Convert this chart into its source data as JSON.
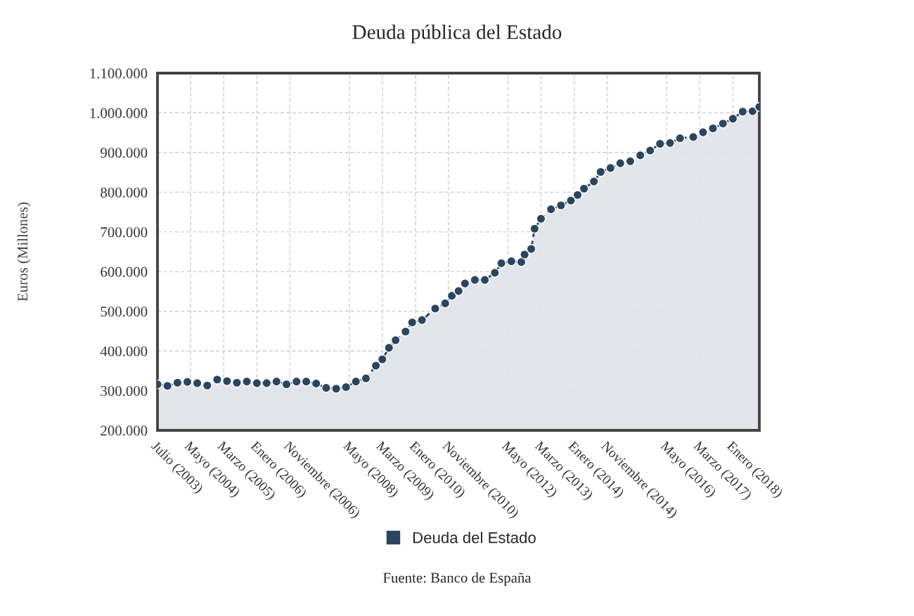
{
  "chart_data": {
    "type": "area",
    "title": "Deuda pública del Estado",
    "ylabel": "Euros (Millones)",
    "x": [
      "2003-07",
      "2003-10",
      "2004-01",
      "2004-04",
      "2004-07",
      "2004-10",
      "2005-01",
      "2005-04",
      "2005-07",
      "2005-10",
      "2006-01",
      "2006-04",
      "2006-07",
      "2006-10",
      "2007-01",
      "2007-04",
      "2007-07",
      "2007-10",
      "2008-01",
      "2008-04",
      "2008-07",
      "2008-10",
      "2009-01",
      "2009-03",
      "2009-05",
      "2009-07",
      "2009-10",
      "2009-12",
      "2010-03",
      "2010-07",
      "2010-10",
      "2010-12",
      "2011-02",
      "2011-04",
      "2011-07",
      "2011-10",
      "2012-01",
      "2012-03",
      "2012-06",
      "2012-09",
      "2012-10",
      "2012-12",
      "2013-01",
      "2013-03",
      "2013-06",
      "2013-09",
      "2013-12",
      "2014-02",
      "2014-04",
      "2014-07",
      "2014-09",
      "2014-12",
      "2015-03",
      "2015-06",
      "2015-09",
      "2015-12",
      "2016-03",
      "2016-06",
      "2016-09",
      "2017-01",
      "2017-04",
      "2017-07",
      "2017-10",
      "2018-01",
      "2018-04",
      "2018-07",
      "2018-09"
    ],
    "series": [
      {
        "name": "Deuda del Estado",
        "color": "#2b4560",
        "values": [
          316000,
          312000,
          320000,
          322000,
          319000,
          313000,
          328000,
          324000,
          320000,
          323000,
          319000,
          319000,
          323000,
          316000,
          323000,
          323000,
          318000,
          307000,
          305000,
          309000,
          323000,
          331000,
          363000,
          379000,
          408000,
          427000,
          449000,
          472000,
          478000,
          507000,
          520000,
          539000,
          551000,
          570000,
          579000,
          579000,
          597000,
          621000,
          626000,
          624000,
          643000,
          657000,
          708000,
          733000,
          757000,
          767000,
          779000,
          793000,
          809000,
          827000,
          851000,
          861000,
          873000,
          878000,
          893000,
          905000,
          922000,
          924000,
          936000,
          939000,
          951000,
          961000,
          973000,
          985000,
          1003000,
          1004000,
          1015000
        ]
      }
    ],
    "xlim": [
      "2003-07",
      "2018-09"
    ],
    "xticks": [
      {
        "value": "2003-07",
        "label": "Julio (2003)"
      },
      {
        "value": "2004-05",
        "label": "Mayo (2004)"
      },
      {
        "value": "2005-03",
        "label": "Marzo (2005)"
      },
      {
        "value": "2006-01",
        "label": "Enero (2006)"
      },
      {
        "value": "2006-11",
        "label": "Noviembre (2006)"
      },
      {
        "value": "2008-05",
        "label": "Mayo (2008)"
      },
      {
        "value": "2009-03",
        "label": "Marzo (2009)"
      },
      {
        "value": "2010-01",
        "label": "Enero (2010)"
      },
      {
        "value": "2010-11",
        "label": "Noviembre (2010)"
      },
      {
        "value": "2012-05",
        "label": "Mayo (2012)"
      },
      {
        "value": "2013-03",
        "label": "Marzo (2013)"
      },
      {
        "value": "2014-01",
        "label": "Enero (2014)"
      },
      {
        "value": "2014-11",
        "label": "Noviembre (2014)"
      },
      {
        "value": "2016-05",
        "label": "Mayo (2016)"
      },
      {
        "value": "2017-03",
        "label": "Marzo (2017)"
      },
      {
        "value": "2018-01",
        "label": "Enero (2018)"
      }
    ],
    "ylim": [
      200000,
      1100000
    ],
    "yticks": [
      {
        "value": 200000,
        "label": "200.000"
      },
      {
        "value": 300000,
        "label": "300.000"
      },
      {
        "value": 400000,
        "label": "400.000"
      },
      {
        "value": 500000,
        "label": "500.000"
      },
      {
        "value": 600000,
        "label": "600.000"
      },
      {
        "value": 700000,
        "label": "700.000"
      },
      {
        "value": 800000,
        "label": "800.000"
      },
      {
        "value": 900000,
        "label": "900.000"
      },
      {
        "value": 1000000,
        "label": "1.000.000"
      },
      {
        "value": 1100000,
        "label": "1.100.000"
      }
    ],
    "grid": true,
    "legend": "bottom",
    "marker": "circle",
    "line_style": "dashed",
    "annotations": [
      "Fuente: Banco de España"
    ]
  }
}
